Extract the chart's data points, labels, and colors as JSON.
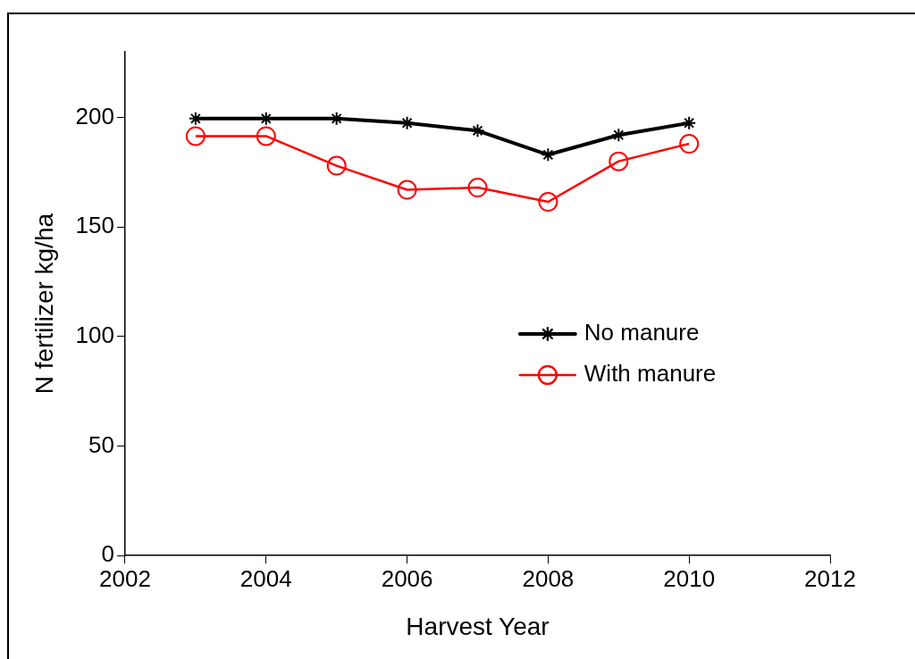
{
  "chart_data": {
    "type": "line",
    "xlabel": "Harvest Year",
    "ylabel": "N fertilizer kg/ha",
    "x": [
      2003,
      2004,
      2005,
      2006,
      2007,
      2008,
      2009,
      2010
    ],
    "xlim": [
      2002,
      2012
    ],
    "xticks": [
      2002,
      2004,
      2006,
      2008,
      2010,
      2012
    ],
    "ylim": [
      0,
      230
    ],
    "yticks": [
      0,
      50,
      100,
      150,
      200
    ],
    "grid": false,
    "legend": "right",
    "series": [
      {
        "name": "No manure",
        "color": "#000000",
        "marker": "cross",
        "values": [
          199.5,
          199.5,
          199.5,
          197.5,
          194,
          183,
          192,
          197.5
        ]
      },
      {
        "name": "With manure",
        "color": "#ff0000",
        "marker": "circle",
        "values": [
          191.5,
          191.5,
          178,
          167,
          168,
          161.5,
          180,
          188
        ]
      }
    ]
  }
}
